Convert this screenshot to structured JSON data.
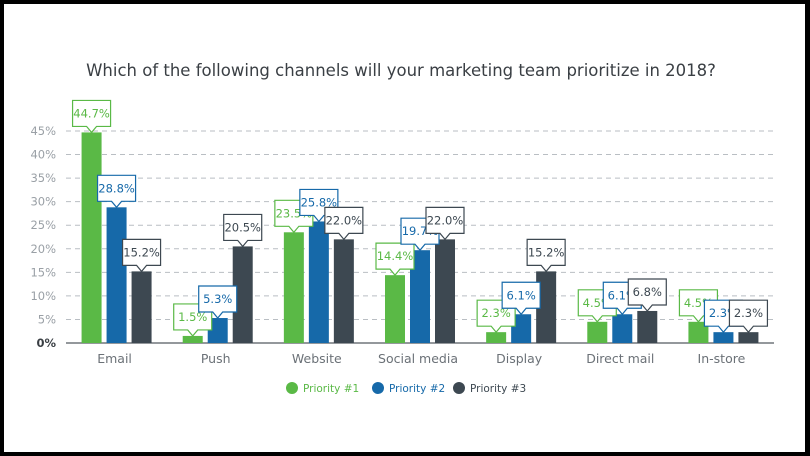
{
  "chart_data": {
    "type": "bar",
    "title": "Which of the following channels will your marketing team prioritize in 2018?",
    "xlabel": "",
    "ylabel": "",
    "ylim": [
      0,
      45
    ],
    "yticks": [
      "0%",
      "5%",
      "10%",
      "15%",
      "20%",
      "25%",
      "30%",
      "35%",
      "40%",
      "45%"
    ],
    "grid": true,
    "legend_position": "bottom-center",
    "categories": [
      "Email",
      "Push",
      "Website",
      "Social media",
      "Display",
      "Direct mail",
      "In-store"
    ],
    "series": [
      {
        "name": "Priority #1",
        "color": "#5ab946",
        "values": [
          44.7,
          1.5,
          23.5,
          14.4,
          2.3,
          4.5,
          4.5
        ],
        "labels": [
          "44.7%",
          "1.5%",
          "23.5%",
          "14.4%",
          "2.3%",
          "4.5%",
          "4.5%"
        ]
      },
      {
        "name": "Priority #2",
        "color": "#1669a9",
        "values": [
          28.8,
          5.3,
          25.8,
          19.7,
          6.1,
          6.1,
          2.3
        ],
        "labels": [
          "28.8%",
          "5.3%",
          "25.8%",
          "19.7%",
          "6.1%",
          "6.1%",
          "2.3%"
        ]
      },
      {
        "name": "Priority #3",
        "color": "#3d4851",
        "values": [
          15.2,
          20.5,
          22.0,
          22.0,
          15.2,
          6.8,
          2.3
        ],
        "labels": [
          "15.2%",
          "20.5%",
          "22.0%",
          "22.0%",
          "15.2%",
          "6.8%",
          "2.3%"
        ]
      }
    ]
  }
}
